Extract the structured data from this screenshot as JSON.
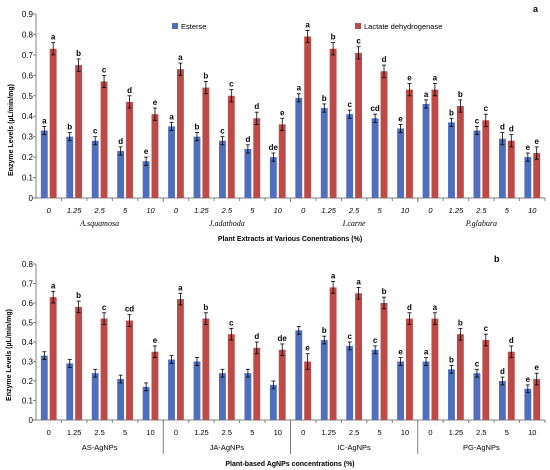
{
  "colors": {
    "esterase": "#4f6fbe",
    "ldh": "#bd4a47",
    "axis": "#808080",
    "error": "#000000"
  },
  "chart_data": [
    {
      "type": "bar",
      "panel_label": "a",
      "ylabel": "Enzyme Levels (µL/min/mg)",
      "xlabel": "Plant Extracts  at Various  Conentrations (%)",
      "ylim": [
        0,
        0.9
      ],
      "yticks": [
        "0",
        "0.1",
        "0.2",
        "0.3",
        "0.4",
        "0.5",
        "0.6",
        "0.7",
        "0.8",
        "0.9"
      ],
      "categories": [
        "0",
        "1.25",
        "2.5",
        "5",
        "10",
        "0",
        "1.25",
        "2.5",
        "5",
        "10",
        "0",
        "1.25",
        "2.5",
        "5",
        "10",
        "0",
        "1.25",
        "2.5",
        "5",
        "10"
      ],
      "groups": [
        "A.squamosa",
        "J.adathoda",
        "I.carne",
        "P.glabura"
      ],
      "legend": [
        "Esterse",
        "Lactate dehydrogenase"
      ],
      "series": [
        {
          "name": "Esterse",
          "values": [
            0.33,
            0.3,
            0.28,
            0.23,
            0.18,
            0.35,
            0.3,
            0.28,
            0.24,
            0.2,
            0.49,
            0.44,
            0.41,
            0.39,
            0.34,
            0.46,
            0.37,
            0.33,
            0.29,
            0.2
          ],
          "errors": [
            0.02,
            0.02,
            0.02,
            0.02,
            0.02,
            0.02,
            0.02,
            0.02,
            0.02,
            0.02,
            0.02,
            0.02,
            0.02,
            0.02,
            0.02,
            0.02,
            0.02,
            0.02,
            0.03,
            0.02
          ],
          "letters": [
            "a",
            "b",
            "c",
            "d",
            "e",
            "a",
            "b",
            "c",
            "d",
            "de",
            "a",
            "b",
            "c",
            "cd",
            "e",
            "a",
            "b",
            "c",
            "d",
            "e"
          ]
        },
        {
          "name": "Lactate dehydrogenase",
          "values": [
            0.73,
            0.65,
            0.57,
            0.47,
            0.41,
            0.63,
            0.54,
            0.5,
            0.39,
            0.36,
            0.79,
            0.73,
            0.71,
            0.62,
            0.53,
            0.53,
            0.45,
            0.38,
            0.28,
            0.22
          ],
          "errors": [
            0.03,
            0.03,
            0.03,
            0.03,
            0.03,
            0.03,
            0.03,
            0.03,
            0.03,
            0.03,
            0.03,
            0.03,
            0.03,
            0.03,
            0.03,
            0.03,
            0.03,
            0.03,
            0.03,
            0.03
          ],
          "letters": [
            "a",
            "b",
            "c",
            "d",
            "e",
            "a",
            "b",
            "c",
            "d",
            "e",
            "a",
            "b",
            "c",
            "d",
            "e",
            "a",
            "b",
            "c",
            "d",
            "e"
          ]
        }
      ]
    },
    {
      "type": "bar",
      "panel_label": "b",
      "ylabel": "Enzyme Levels (µL/min/mg)",
      "xlabel": "Plant-based AgNPs concentrations (%)",
      "ylim": [
        0,
        0.8
      ],
      "yticks": [
        "0",
        "0.1",
        "0.2",
        "0.3",
        "0.4",
        "0.5",
        "0.6",
        "0.7",
        "0.8"
      ],
      "categories": [
        "0",
        "1.25",
        "2.5",
        "5",
        "10",
        "0",
        "1.25",
        "2.5",
        "5",
        "10",
        "0",
        "1.25",
        "2.5",
        "5",
        "10",
        "0",
        "1.25",
        "2.5",
        "5",
        "10"
      ],
      "groups": [
        "AS-AgNPs",
        "JA-AgNPs",
        "IC-AgNPs",
        "PG-AgNPs"
      ],
      "series": [
        {
          "name": "Esterse",
          "values": [
            0.33,
            0.29,
            0.24,
            0.21,
            0.17,
            0.31,
            0.3,
            0.24,
            0.24,
            0.18,
            0.46,
            0.41,
            0.38,
            0.36,
            0.3,
            0.3,
            0.26,
            0.24,
            0.2,
            0.16
          ],
          "errors": [
            0.02,
            0.02,
            0.02,
            0.02,
            0.02,
            0.02,
            0.02,
            0.02,
            0.02,
            0.02,
            0.02,
            0.02,
            0.02,
            0.02,
            0.02,
            0.02,
            0.02,
            0.02,
            0.02,
            0.02
          ],
          "letters": [
            "",
            "",
            "",
            "",
            "",
            "",
            "",
            "",
            "",
            "",
            "",
            "b",
            "c",
            "c",
            "e",
            "a",
            "b",
            "c",
            "d",
            "e"
          ]
        },
        {
          "name": "Lactate dehydrogenase",
          "values": [
            0.63,
            0.58,
            0.52,
            0.51,
            0.35,
            0.62,
            0.52,
            0.44,
            0.37,
            0.36,
            0.3,
            0.68,
            0.65,
            0.6,
            0.52,
            0.52,
            0.44,
            0.41,
            0.35,
            0.21
          ],
          "errors": [
            0.03,
            0.03,
            0.03,
            0.03,
            0.03,
            0.03,
            0.03,
            0.03,
            0.03,
            0.03,
            0.04,
            0.03,
            0.03,
            0.03,
            0.03,
            0.03,
            0.03,
            0.03,
            0.03,
            0.03
          ],
          "letters": [
            "a",
            "b",
            "c",
            "cd",
            "e",
            "a",
            "b",
            "c",
            "d",
            "de",
            "e",
            "a",
            "a",
            "b",
            "d",
            "a",
            "b",
            "c",
            "d",
            "e"
          ]
        }
      ]
    }
  ]
}
